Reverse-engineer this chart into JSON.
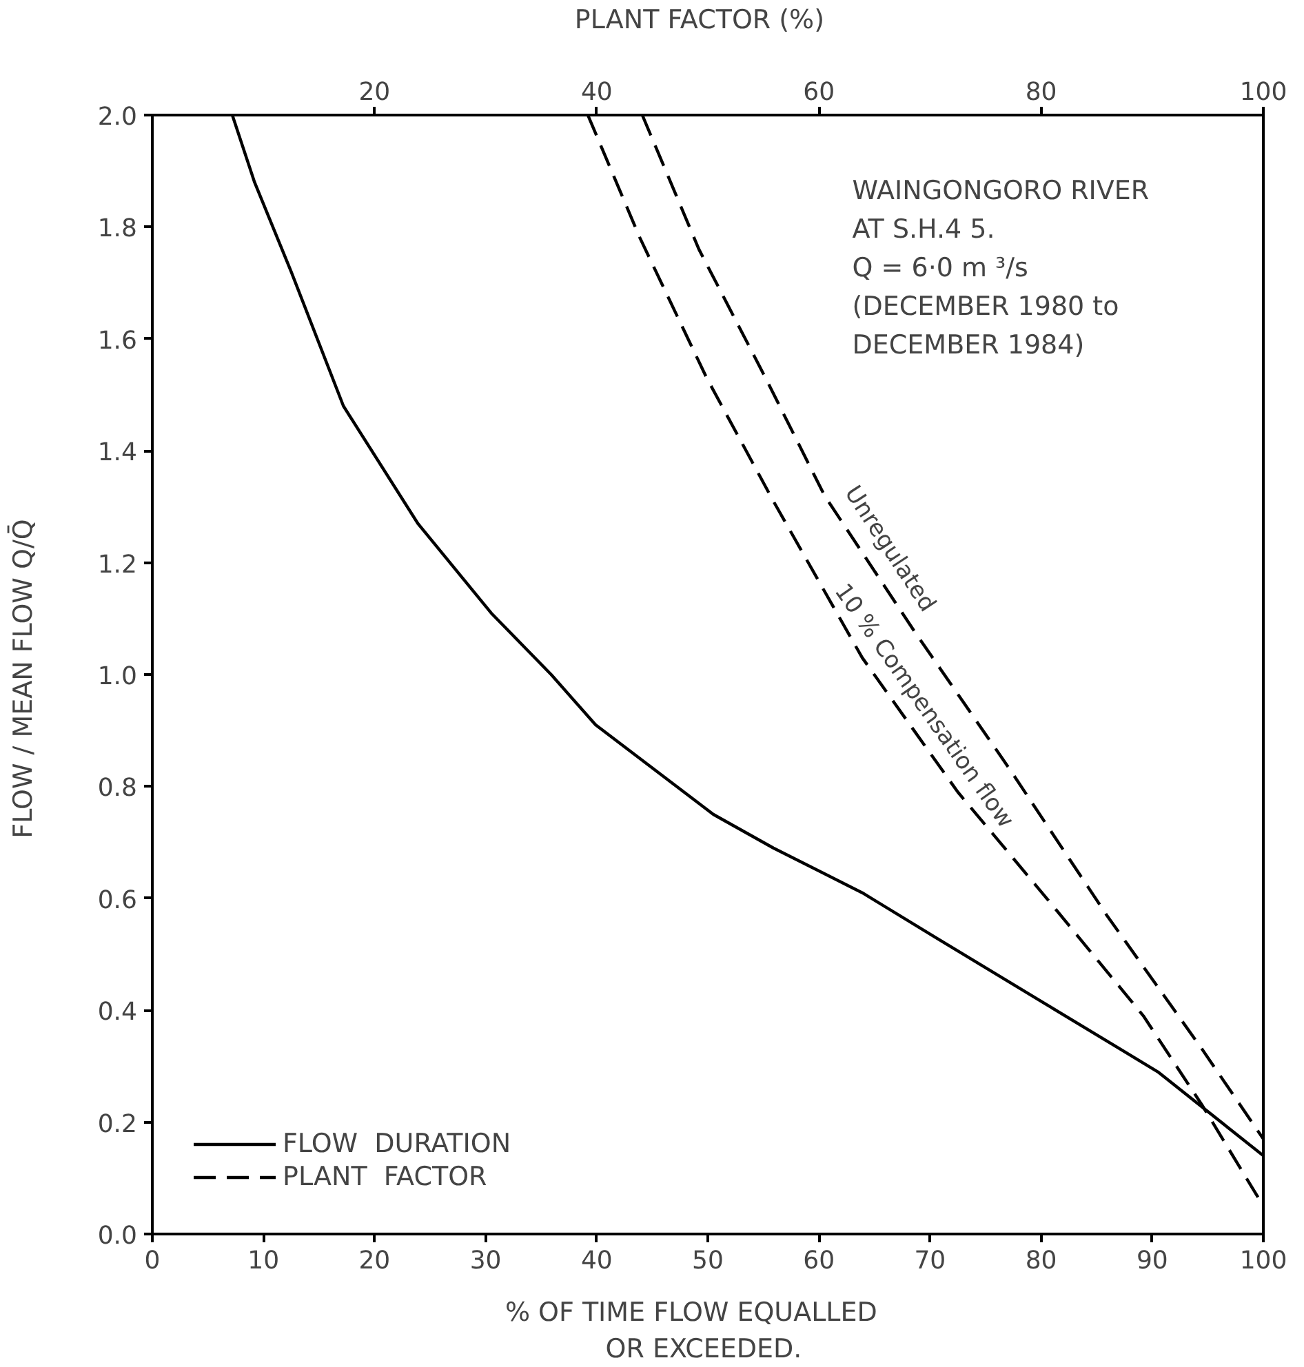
{
  "chart_data": {
    "type": "line",
    "xlabel": "%  OF  TIME  FLOW  EQUALLED\nOR  EXCEEDED.",
    "ylabel": "FLOW / MEAN FLOW  Q/Q̄",
    "x2label": "PLANT  FACTOR  (%)",
    "xlim": [
      0,
      100
    ],
    "xticks": [
      0,
      10,
      20,
      30,
      40,
      50,
      60,
      70,
      80,
      90,
      100
    ],
    "x2lim": [
      0,
      100
    ],
    "x2ticks": [
      20,
      40,
      60,
      80,
      100
    ],
    "ylim": [
      0,
      2
    ],
    "yticks": [
      {
        "value": 0,
        "label": "0.0"
      },
      {
        "value": 0.2,
        "label": "0.2"
      },
      {
        "value": 0.4,
        "label": "0.4"
      },
      {
        "value": 0.6,
        "label": "0.6"
      },
      {
        "value": 0.8,
        "label": "0.8"
      },
      {
        "value": 1.0,
        "label": "1.0"
      },
      {
        "value": 1.2,
        "label": "1.2"
      },
      {
        "value": 1.4,
        "label": "1.4"
      },
      {
        "value": 1.6,
        "label": "1.6"
      },
      {
        "value": 1.8,
        "label": "1.8"
      },
      {
        "value": 2.0,
        "label": "2.0"
      }
    ],
    "grid": false,
    "legend": "bottom left",
    "series": [
      {
        "name": "FLOW  DURATION",
        "color": "#000000",
        "line_style": "solid",
        "x": [
          7.2,
          9.2,
          12.5,
          17.2,
          23.9,
          30.5,
          35.9,
          39.9,
          50.5,
          55.9,
          63.9,
          70.5,
          80.5,
          90.5,
          100
        ],
        "values": [
          2.0,
          1.88,
          1.72,
          1.48,
          1.27,
          1.11,
          1.0,
          0.91,
          0.75,
          0.69,
          0.61,
          0.53,
          0.41,
          0.29,
          0.14
        ]
      },
      {
        "name": "PLANT  FACTOR",
        "color": "#000000",
        "line_style": "dashed",
        "x": [
          44.1,
          49.2,
          55.2,
          60.5,
          68.5,
          77.2,
          85.9,
          94.5,
          100
        ],
        "values": [
          2.0,
          1.76,
          1.53,
          1.32,
          1.08,
          0.83,
          0.57,
          0.33,
          0.17
        ]
      },
      {
        "color": "#000000",
        "line_style": "dashed",
        "x": [
          39.2,
          43.9,
          49.9,
          55.9,
          63.9,
          72.5,
          80.5,
          89.2,
          94.5,
          100
        ],
        "values": [
          2.0,
          1.78,
          1.53,
          1.31,
          1.03,
          0.79,
          0.6,
          0.39,
          0.23,
          0.05
        ]
      }
    ],
    "annotations": [
      "WAINGONGORO  RIVER\nAT  S.H.4 5.\nQ  =  6·0 m ³/s\n(DECEMBER 1980 to\nDECEMBER 1984)",
      "10 %  Compensation  flow",
      "Unregulated"
    ]
  }
}
